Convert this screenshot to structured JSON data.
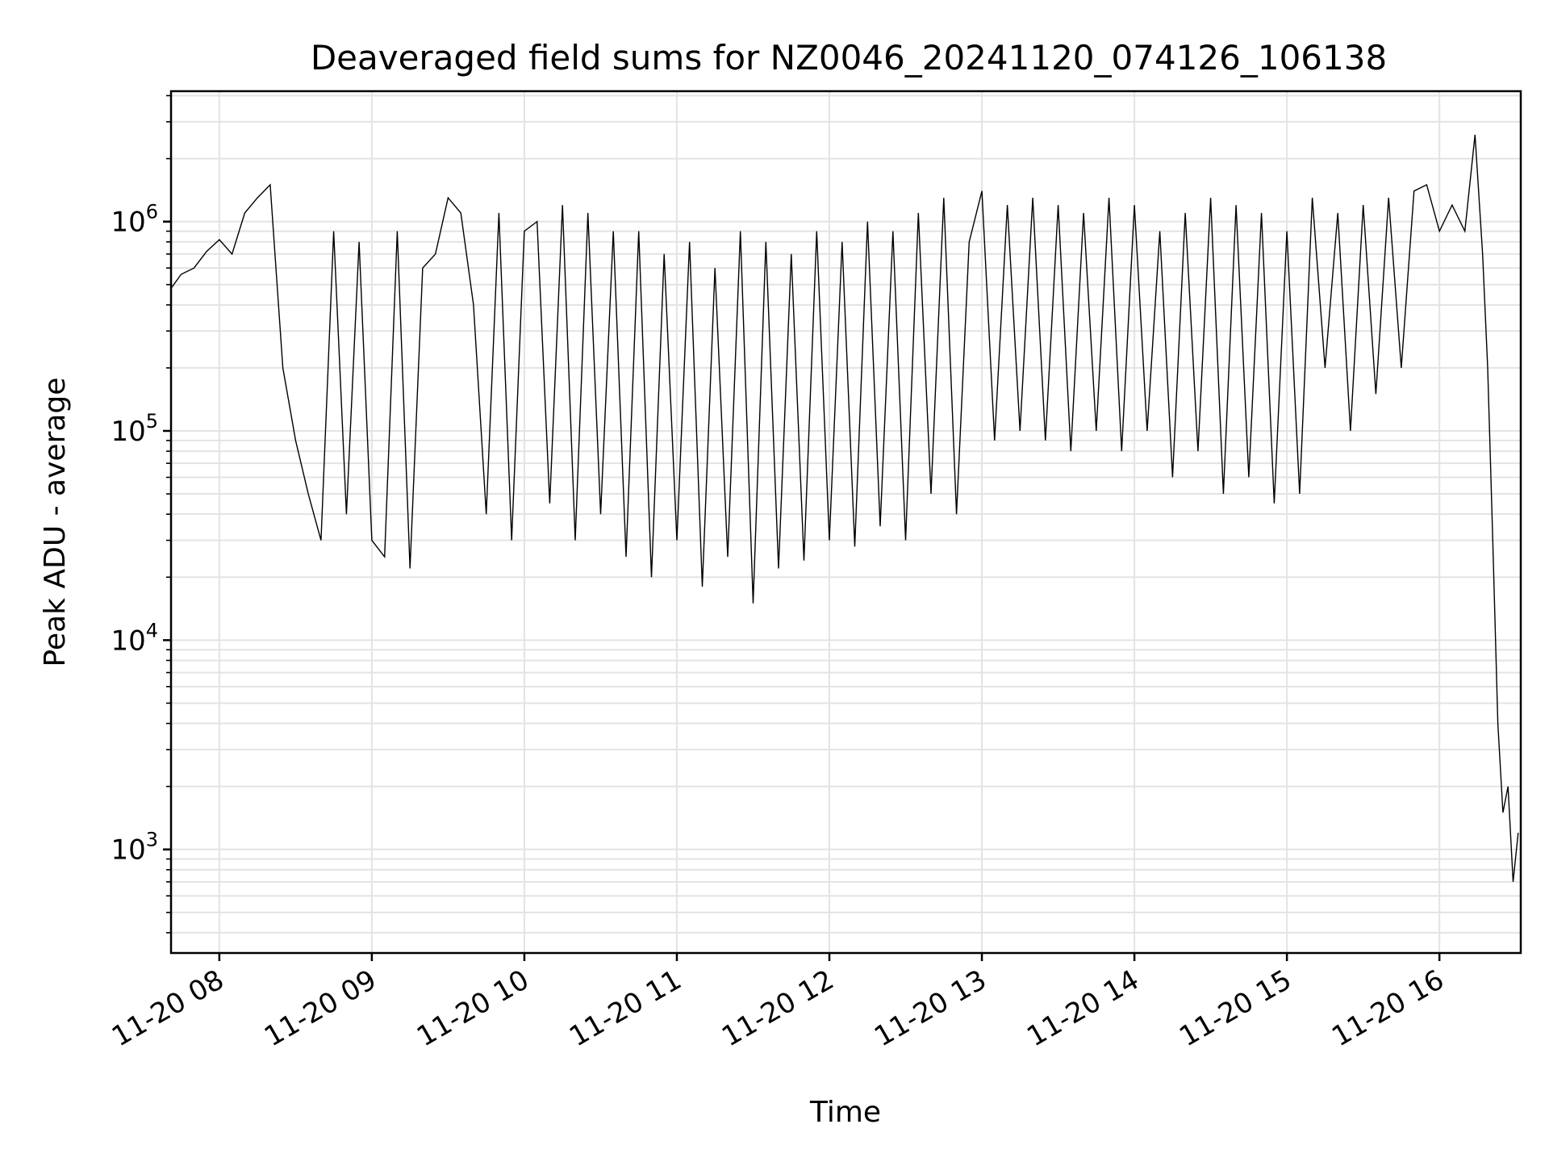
{
  "chart_data": {
    "type": "line",
    "title": "Deaveraged field sums for NZ0046_20241120_074126_106138",
    "xlabel": "Time",
    "ylabel": "Peak ADU - average",
    "y_scale": "log",
    "ylim": [
      320,
      4200000
    ],
    "xlim": [
      "2024-11-20 07:41",
      "2024-11-20 16:32"
    ],
    "x_ticks": [
      "11-20 08",
      "11-20 09",
      "11-20 10",
      "11-20 11",
      "11-20 12",
      "11-20 13",
      "11-20 14",
      "11-20 15",
      "11-20 16"
    ],
    "y_ticks": [
      {
        "value": 1000,
        "base": "10",
        "exp": "3"
      },
      {
        "value": 10000,
        "base": "10",
        "exp": "4"
      },
      {
        "value": 100000,
        "base": "10",
        "exp": "5"
      },
      {
        "value": 1000000,
        "base": "10",
        "exp": "6"
      }
    ],
    "grid": true,
    "series_color": "#000000",
    "series": [
      {
        "x": [
          "2024-11-20 07:41",
          "2024-11-20 07:45",
          "2024-11-20 07:50",
          "2024-11-20 07:55",
          "2024-11-20 08:00",
          "2024-11-20 08:05",
          "2024-11-20 08:10",
          "2024-11-20 08:15",
          "2024-11-20 08:20",
          "2024-11-20 08:25",
          "2024-11-20 08:30",
          "2024-11-20 08:35",
          "2024-11-20 08:40",
          "2024-11-20 08:45",
          "2024-11-20 08:50",
          "2024-11-20 08:55",
          "2024-11-20 09:00",
          "2024-11-20 09:05",
          "2024-11-20 09:10",
          "2024-11-20 09:15",
          "2024-11-20 09:20",
          "2024-11-20 09:25",
          "2024-11-20 09:30",
          "2024-11-20 09:35",
          "2024-11-20 09:40",
          "2024-11-20 09:45",
          "2024-11-20 09:50",
          "2024-11-20 09:55",
          "2024-11-20 10:00",
          "2024-11-20 10:05",
          "2024-11-20 10:10",
          "2024-11-20 10:15",
          "2024-11-20 10:20",
          "2024-11-20 10:25",
          "2024-11-20 10:30",
          "2024-11-20 10:35",
          "2024-11-20 10:40",
          "2024-11-20 10:45",
          "2024-11-20 10:50",
          "2024-11-20 10:55",
          "2024-11-20 11:00",
          "2024-11-20 11:05",
          "2024-11-20 11:10",
          "2024-11-20 11:15",
          "2024-11-20 11:20",
          "2024-11-20 11:25",
          "2024-11-20 11:30",
          "2024-11-20 11:35",
          "2024-11-20 11:40",
          "2024-11-20 11:45",
          "2024-11-20 11:50",
          "2024-11-20 11:55",
          "2024-11-20 12:00",
          "2024-11-20 12:05",
          "2024-11-20 12:10",
          "2024-11-20 12:15",
          "2024-11-20 12:20",
          "2024-11-20 12:25",
          "2024-11-20 12:30",
          "2024-11-20 12:35",
          "2024-11-20 12:40",
          "2024-11-20 12:45",
          "2024-11-20 12:50",
          "2024-11-20 12:55",
          "2024-11-20 13:00",
          "2024-11-20 13:05",
          "2024-11-20 13:10",
          "2024-11-20 13:15",
          "2024-11-20 13:20",
          "2024-11-20 13:25",
          "2024-11-20 13:30",
          "2024-11-20 13:35",
          "2024-11-20 13:40",
          "2024-11-20 13:45",
          "2024-11-20 13:50",
          "2024-11-20 13:55",
          "2024-11-20 14:00",
          "2024-11-20 14:05",
          "2024-11-20 14:10",
          "2024-11-20 14:15",
          "2024-11-20 14:20",
          "2024-11-20 14:25",
          "2024-11-20 14:30",
          "2024-11-20 14:35",
          "2024-11-20 14:40",
          "2024-11-20 14:45",
          "2024-11-20 14:50",
          "2024-11-20 14:55",
          "2024-11-20 15:00",
          "2024-11-20 15:05",
          "2024-11-20 15:10",
          "2024-11-20 15:15",
          "2024-11-20 15:20",
          "2024-11-20 15:25",
          "2024-11-20 15:30",
          "2024-11-20 15:35",
          "2024-11-20 15:40",
          "2024-11-20 15:45",
          "2024-11-20 15:50",
          "2024-11-20 15:55",
          "2024-11-20 16:00",
          "2024-11-20 16:05",
          "2024-11-20 16:10",
          "2024-11-20 16:14",
          "2024-11-20 16:17",
          "2024-11-20 16:19",
          "2024-11-20 16:21",
          "2024-11-20 16:23",
          "2024-11-20 16:25",
          "2024-11-20 16:27",
          "2024-11-20 16:29",
          "2024-11-20 16:31"
        ],
        "y": [
          480000,
          560000,
          600000,
          720000,
          820000,
          700000,
          1100000,
          1300000,
          1500000,
          200000,
          90000,
          50000,
          30000,
          900000,
          40000,
          800000,
          30000,
          25000,
          900000,
          22000,
          600000,
          700000,
          1300000,
          1100000,
          400000,
          40000,
          1100000,
          30000,
          900000,
          1000000,
          45000,
          1200000,
          30000,
          1100000,
          40000,
          900000,
          25000,
          900000,
          20000,
          700000,
          30000,
          800000,
          18000,
          600000,
          25000,
          900000,
          15000,
          800000,
          22000,
          700000,
          24000,
          900000,
          30000,
          800000,
          28000,
          1000000,
          35000,
          900000,
          30000,
          1100000,
          50000,
          1300000,
          40000,
          800000,
          1400000,
          90000,
          1200000,
          100000,
          1300000,
          90000,
          1200000,
          80000,
          1100000,
          100000,
          1300000,
          80000,
          1200000,
          100000,
          900000,
          60000,
          1100000,
          80000,
          1300000,
          50000,
          1200000,
          60000,
          1100000,
          45000,
          900000,
          50000,
          1300000,
          200000,
          1100000,
          100000,
          1200000,
          150000,
          1300000,
          200000,
          1400000,
          1500000,
          900000,
          1200000,
          900000,
          2600000,
          700000,
          200000,
          30000,
          4000,
          1500,
          2000,
          700,
          1200
        ]
      }
    ]
  }
}
